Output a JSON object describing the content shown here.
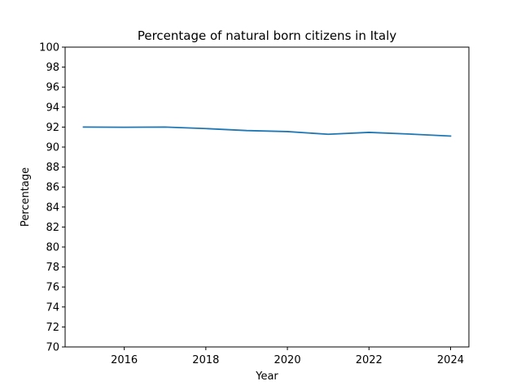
{
  "chart_data": {
    "type": "line",
    "title": "Percentage of natural born citizens in Italy",
    "xlabel": "Year",
    "ylabel": "Percentage",
    "xlim": [
      2014.55,
      2024.45
    ],
    "ylim": [
      70,
      100
    ],
    "xticks": [
      2016,
      2018,
      2020,
      2022,
      2024
    ],
    "yticks": [
      70,
      72,
      74,
      76,
      78,
      80,
      82,
      84,
      86,
      88,
      90,
      92,
      94,
      96,
      98,
      100
    ],
    "grid": false,
    "series": [
      {
        "color": "#1f77b4",
        "x": [
          2015,
          2016,
          2017,
          2018,
          2019,
          2020,
          2021,
          2022,
          2023,
          2024
        ],
        "y": [
          92.0,
          91.98,
          92.0,
          91.85,
          91.65,
          91.55,
          91.28,
          91.47,
          91.3,
          91.1
        ]
      }
    ]
  }
}
